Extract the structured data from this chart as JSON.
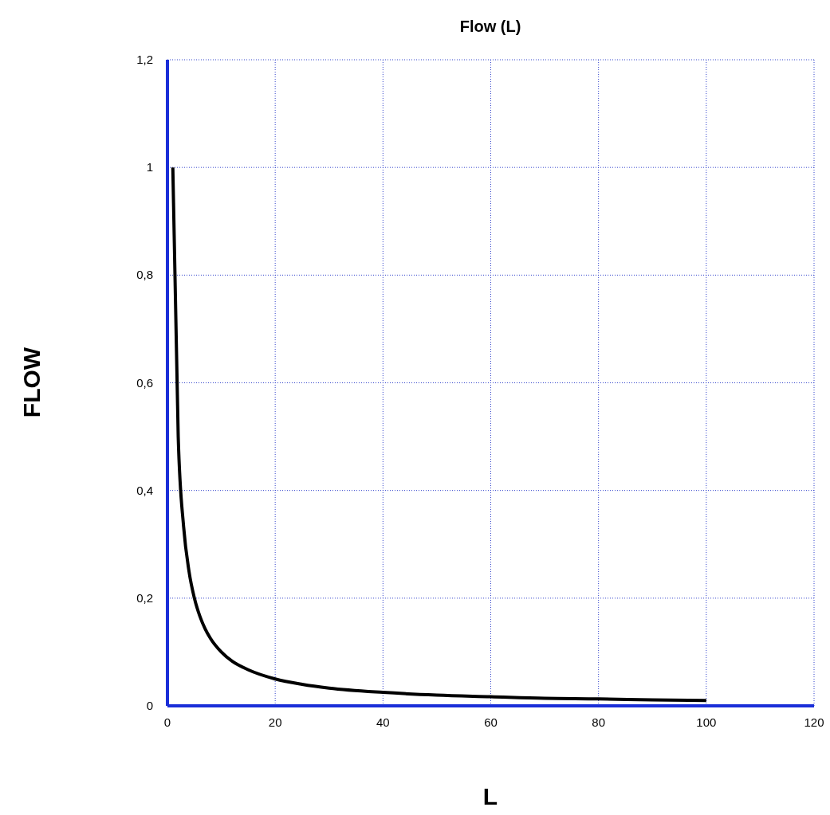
{
  "chart_data": {
    "type": "line",
    "title": "Flow (L)",
    "xlabel": "L",
    "ylabel": "FLOW",
    "x": [
      1,
      2,
      3,
      4,
      5,
      6,
      7,
      8,
      10,
      12,
      15,
      20,
      25,
      30,
      40,
      50,
      60,
      70,
      80,
      90,
      100
    ],
    "series": [
      {
        "color": "#000000",
        "values": [
          1,
          0.5,
          0.333,
          0.25,
          0.2,
          0.167,
          0.143,
          0.125,
          0.1,
          0.083,
          0.067,
          0.05,
          0.04,
          0.033,
          0.025,
          0.02,
          0.017,
          0.014,
          0.013,
          0.011,
          0.01
        ]
      }
    ],
    "xlim": [
      0,
      120
    ],
    "xticks": [
      0,
      20,
      40,
      60,
      80,
      100,
      120
    ],
    "ylim": [
      0,
      1.2
    ],
    "yticks": [
      0,
      {
        "value": 0.2,
        "label": "0,2"
      },
      {
        "value": 0.4,
        "label": "0,4"
      },
      {
        "value": 0.6,
        "label": "0,6"
      },
      {
        "value": 0.8,
        "label": "0,8"
      },
      1,
      {
        "value": 1.2,
        "label": "1,2"
      }
    ],
    "grid": true,
    "marker": "none",
    "line_style": "solid"
  }
}
